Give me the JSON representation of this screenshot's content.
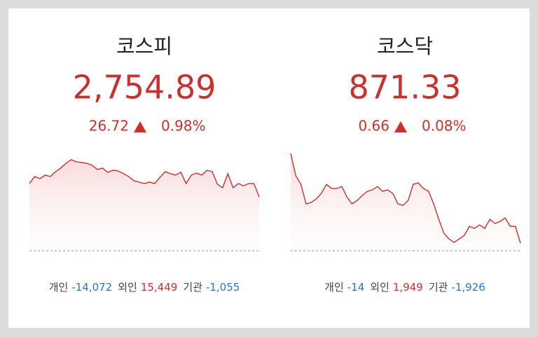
{
  "cards": [
    {
      "title": "코스피",
      "price": "2,754.89",
      "change": "26.72",
      "rate": "0.98%",
      "chart": {
        "type": "line",
        "color": "#c8312f",
        "ylim": [
          2728,
          2778
        ],
        "values": [
          2761.6,
          2765.1,
          2764.0,
          2765.8,
          2765.1,
          2767.5,
          2769.3,
          2771.7,
          2773.5,
          2772.4,
          2772.1,
          2771.7,
          2770.7,
          2768.6,
          2769.3,
          2767.2,
          2768.2,
          2767.9,
          2766.5,
          2765.1,
          2763.0,
          2762.3,
          2761.6,
          2762.3,
          2761.6,
          2764.7,
          2767.5,
          2766.5,
          2765.8,
          2767.2,
          2761.6,
          2765.8,
          2766.8,
          2765.8,
          2768.2,
          2767.5,
          2761.2,
          2759.5,
          2766.5,
          2759.5,
          2761.6,
          2760.5,
          2761.6,
          2761.6,
          2754.89
        ]
      },
      "investors": [
        {
          "label": "개인",
          "value": "-14,072",
          "color": "#2f74c0"
        },
        {
          "label": "외인",
          "value": "15,449",
          "color": "#c8312f"
        },
        {
          "label": "기관",
          "value": "-1,055",
          "color": "#2f74c0"
        }
      ]
    },
    {
      "title": "코스닥",
      "price": "871.33",
      "change": "0.66",
      "rate": "0.08%",
      "chart": {
        "type": "line",
        "color": "#c8312f",
        "ylim": [
          870.6,
          880.2
        ],
        "values": [
          879.93,
          877.78,
          876.97,
          875.1,
          875.23,
          875.57,
          876.1,
          876.97,
          876.57,
          876.57,
          876.77,
          875.77,
          875.1,
          875.43,
          875.9,
          876.3,
          876.44,
          876.77,
          876.3,
          876.44,
          876.1,
          875.1,
          874.96,
          875.43,
          876.97,
          877.11,
          876.57,
          876.3,
          875.1,
          873.62,
          872.28,
          871.74,
          871.41,
          871.74,
          872.08,
          872.95,
          872.75,
          873.08,
          872.75,
          873.62,
          873.22,
          873.42,
          873.75,
          872.95,
          872.95,
          871.33
        ]
      },
      "investors": [
        {
          "label": "개인",
          "value": "-14",
          "color": "#2f74c0"
        },
        {
          "label": "외인",
          "value": "1,949",
          "color": "#c8312f"
        },
        {
          "label": "기관",
          "value": "-1,926",
          "color": "#2f74c0"
        }
      ]
    }
  ]
}
